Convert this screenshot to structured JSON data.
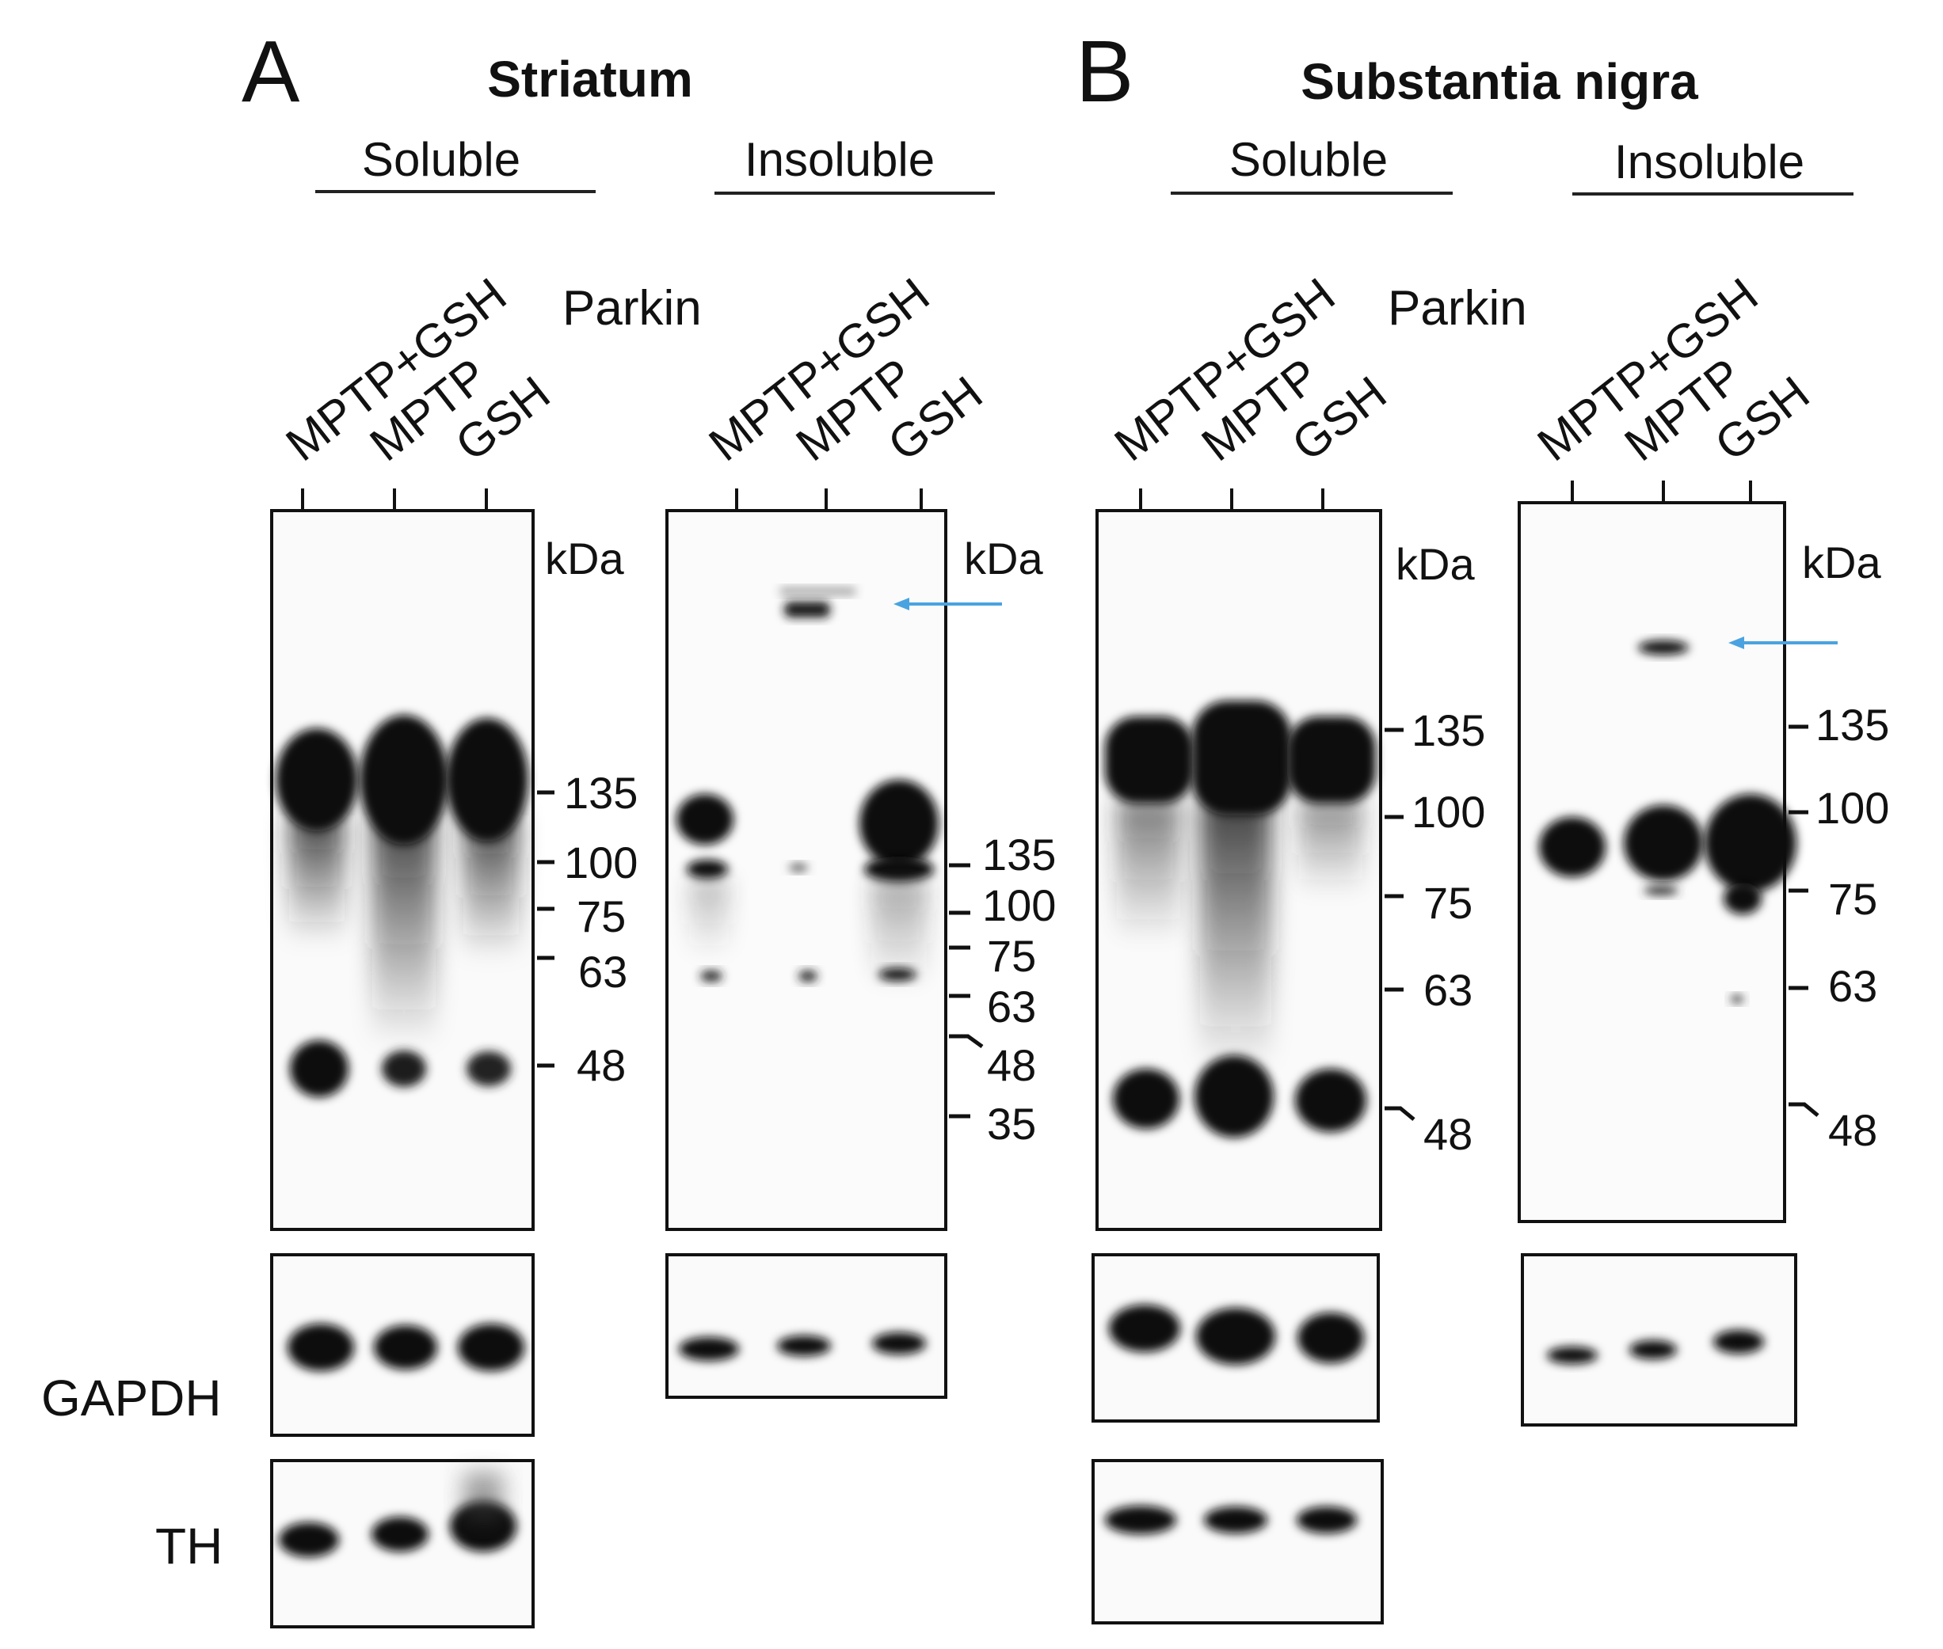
{
  "panels": [
    {
      "letter": "A",
      "region": "Striatum",
      "fractions": [
        "Soluble",
        "Insoluble"
      ],
      "antibody": "Parkin",
      "lanes": [
        "MPTP+GSH",
        "MPTP",
        "GSH"
      ],
      "kda_label": "kDa",
      "soluble_markers": [
        "135",
        "100",
        "75",
        "63",
        "48"
      ],
      "insoluble_markers": [
        "135",
        "100",
        "75",
        "63",
        "48",
        "35"
      ],
      "loading_controls": [
        "GAPDH",
        "TH"
      ]
    },
    {
      "letter": "B",
      "region": "Substantia nigra",
      "fractions": [
        "Soluble",
        "Insoluble"
      ],
      "antibody": "Parkin",
      "lanes": [
        "MPTP+GSH",
        "MPTP",
        "GSH"
      ],
      "kda_label": "kDa",
      "soluble_markers": [
        "135",
        "100",
        "75",
        "63",
        "48"
      ],
      "insoluble_markers": [
        "135",
        "100",
        "75",
        "63",
        "48"
      ]
    }
  ],
  "colors": {
    "band": "#101010",
    "arrow": "#4aa3e0",
    "frame": "#111111"
  }
}
